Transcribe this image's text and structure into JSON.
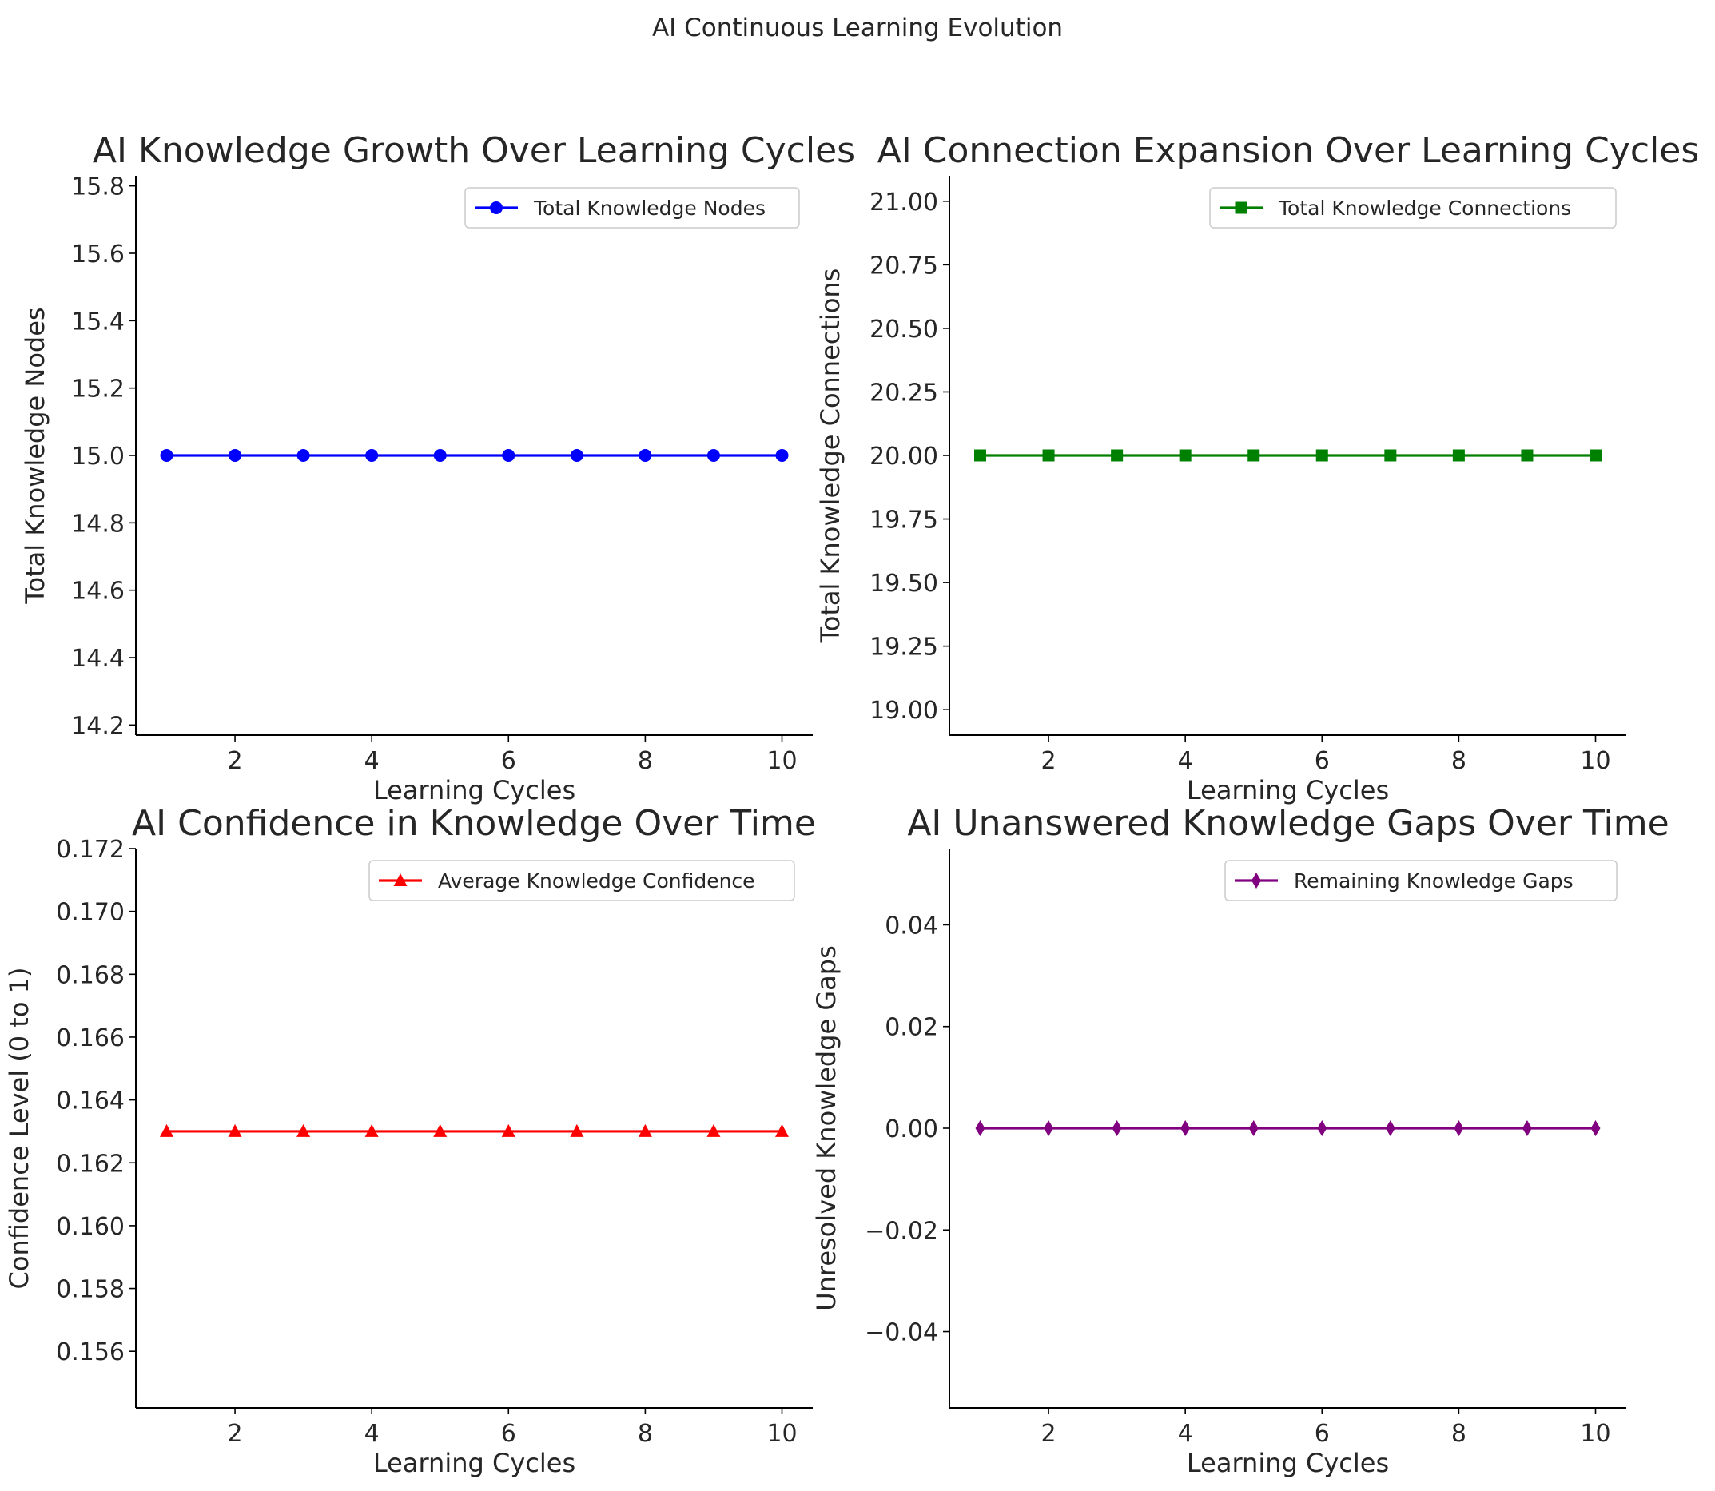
{
  "figure": {
    "suptitle": "AI Continuous Learning Evolution"
  },
  "chart_data": [
    {
      "type": "line",
      "title": "AI Knowledge Growth Over Learning Cycles",
      "xlabel": "Learning Cycles",
      "ylabel": "Total Knowledge Nodes",
      "x": [
        1,
        2,
        3,
        4,
        5,
        6,
        7,
        8,
        9,
        10
      ],
      "xlim": [
        0.55,
        10.45
      ],
      "ylim": [
        14.17,
        15.83
      ],
      "xticks": [
        2,
        4,
        6,
        8,
        10
      ],
      "xtick_labels": [
        "2",
        "4",
        "6",
        "8",
        "10"
      ],
      "yticks": [
        14.2,
        14.4,
        14.6,
        14.8,
        15.0,
        15.2,
        15.4,
        15.6,
        15.8
      ],
      "ytick_labels": [
        "14.2",
        "14.4",
        "14.6",
        "14.8",
        "15.0",
        "15.2",
        "15.4",
        "15.6",
        "15.8"
      ],
      "grid": false,
      "legend": "top-right",
      "series": [
        {
          "name": "Total Knowledge Nodes",
          "color": "#0000ff",
          "marker": "circle",
          "values": [
            15,
            15,
            15,
            15,
            15,
            15,
            15,
            15,
            15,
            15
          ]
        }
      ]
    },
    {
      "type": "line",
      "title": "AI Connection Expansion Over Learning Cycles",
      "xlabel": "Learning Cycles",
      "ylabel": "Total Knowledge Connections",
      "x": [
        1,
        2,
        3,
        4,
        5,
        6,
        7,
        8,
        9,
        10
      ],
      "xlim": [
        0.55,
        10.45
      ],
      "ylim": [
        18.9,
        21.1
      ],
      "xticks": [
        2,
        4,
        6,
        8,
        10
      ],
      "xtick_labels": [
        "2",
        "4",
        "6",
        "8",
        "10"
      ],
      "yticks": [
        19.0,
        19.25,
        19.5,
        19.75,
        20.0,
        20.25,
        20.5,
        20.75,
        21.0
      ],
      "ytick_labels": [
        "19.00",
        "19.25",
        "19.50",
        "19.75",
        "20.00",
        "20.25",
        "20.50",
        "20.75",
        "21.00"
      ],
      "grid": false,
      "legend": "top-right",
      "series": [
        {
          "name": "Total Knowledge Connections",
          "color": "#008000",
          "marker": "square",
          "values": [
            20,
            20,
            20,
            20,
            20,
            20,
            20,
            20,
            20,
            20
          ]
        }
      ]
    },
    {
      "type": "line",
      "title": "AI Confidence in Knowledge Over Time",
      "xlabel": "Learning Cycles",
      "ylabel": "Confidence Level (0 to 1)",
      "x": [
        1,
        2,
        3,
        4,
        5,
        6,
        7,
        8,
        9,
        10
      ],
      "xlim": [
        0.55,
        10.45
      ],
      "ylim": [
        0.1542,
        0.172
      ],
      "xticks": [
        2,
        4,
        6,
        8,
        10
      ],
      "xtick_labels": [
        "2",
        "4",
        "6",
        "8",
        "10"
      ],
      "yticks": [
        0.156,
        0.158,
        0.16,
        0.162,
        0.164,
        0.166,
        0.168,
        0.17,
        0.172
      ],
      "ytick_labels": [
        "0.156",
        "0.158",
        "0.160",
        "0.162",
        "0.164",
        "0.166",
        "0.168",
        "0.170",
        "0.172"
      ],
      "grid": false,
      "legend": "top-right",
      "series": [
        {
          "name": "Average Knowledge Confidence",
          "color": "#ff0000",
          "marker": "triangle",
          "values": [
            0.163,
            0.163,
            0.163,
            0.163,
            0.163,
            0.163,
            0.163,
            0.163,
            0.163,
            0.163
          ]
        }
      ]
    },
    {
      "type": "line",
      "title": "AI Unanswered Knowledge Gaps Over Time",
      "xlabel": "Learning Cycles",
      "ylabel": "Unresolved Knowledge Gaps",
      "x": [
        1,
        2,
        3,
        4,
        5,
        6,
        7,
        8,
        9,
        10
      ],
      "xlim": [
        0.55,
        10.45
      ],
      "ylim": [
        -0.055,
        0.055
      ],
      "xticks": [
        2,
        4,
        6,
        8,
        10
      ],
      "xtick_labels": [
        "2",
        "4",
        "6",
        "8",
        "10"
      ],
      "yticks": [
        -0.04,
        -0.02,
        0.0,
        0.02,
        0.04
      ],
      "ytick_labels": [
        "−0.04",
        "−0.02",
        "0.00",
        "0.02",
        "0.04"
      ],
      "grid": false,
      "legend": "top-right",
      "series": [
        {
          "name": "Remaining Knowledge Gaps",
          "color": "#800080",
          "marker": "diamond",
          "values": [
            0,
            0,
            0,
            0,
            0,
            0,
            0,
            0,
            0,
            0
          ]
        }
      ]
    }
  ]
}
